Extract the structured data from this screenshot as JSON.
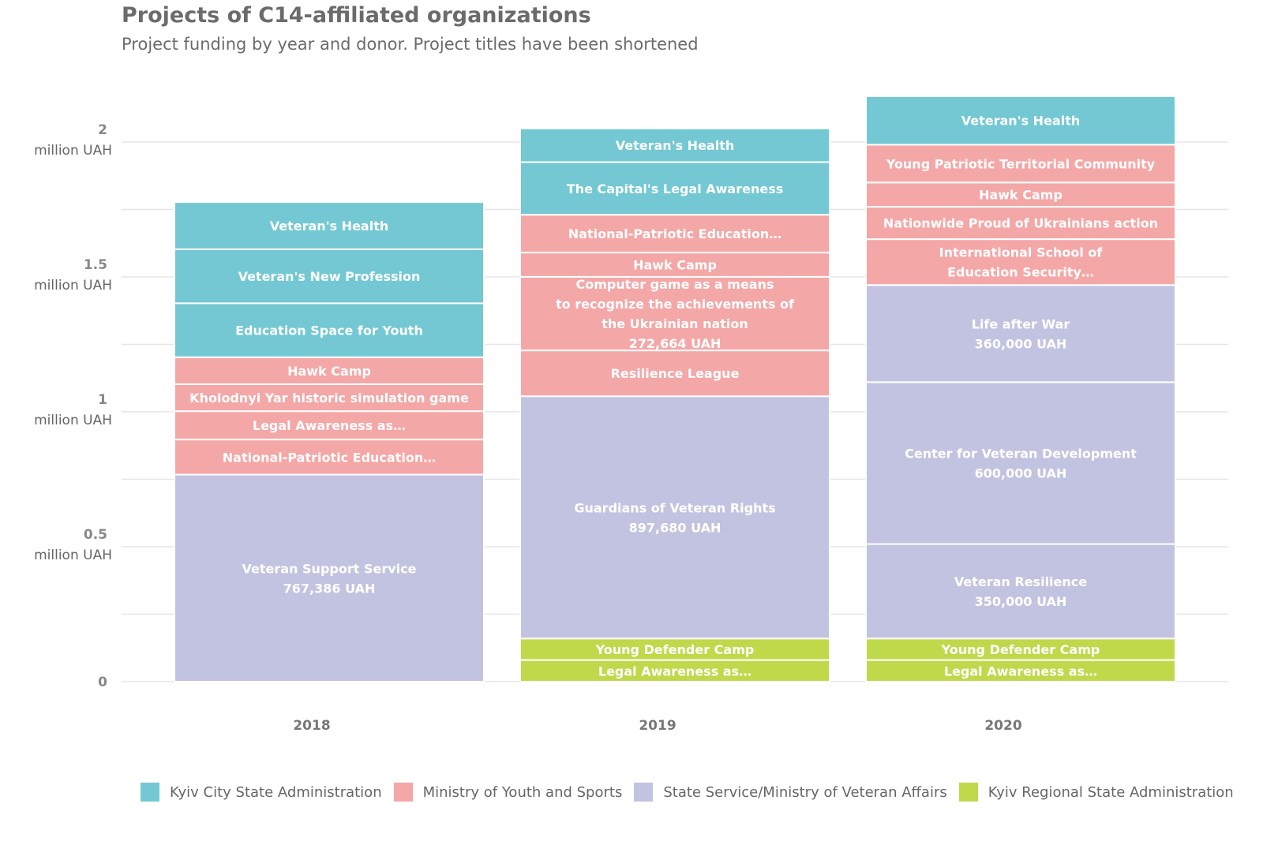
{
  "title": "Projects of C14-affiliated organizations",
  "subtitle": "Project funding by year and donor. Project titles have been shortened",
  "colors": {
    "kyiv_city": "#73c8d3",
    "ministry_youth": "#f4a7a7",
    "veteran_affairs": "#c2c3e0",
    "kyiv_regional": "#bfd94b"
  },
  "chart_data": {
    "type": "bar",
    "stacked": true,
    "categories": [
      "2018",
      "2019",
      "2020"
    ],
    "ylim": [
      0,
      2.2
    ],
    "y_unit_label": "million UAH",
    "y_ticks": [
      {
        "value": 0,
        "label": "0",
        "unit": ""
      },
      {
        "value": 0.5,
        "label": "0.5",
        "unit": "million UAH"
      },
      {
        "value": 1,
        "label": "1",
        "unit": "million UAH"
      },
      {
        "value": 1.5,
        "label": "1.5",
        "unit": "million UAH"
      },
      {
        "value": 2,
        "label": "2",
        "unit": "million UAH"
      }
    ],
    "grid": true,
    "legend_position": "bottom",
    "legend": [
      {
        "key": "kyiv_city",
        "name": "Kyiv City State Administration"
      },
      {
        "key": "ministry_youth",
        "name": "Ministry of Youth and Sports"
      },
      {
        "key": "veteran_affairs",
        "name": "State Service/Ministry of Veteran Affairs"
      },
      {
        "key": "kyiv_regional",
        "name": "Kyiv Regional State Administration"
      }
    ],
    "stacks": [
      {
        "year": "2018",
        "segments": [
          {
            "donor": "veteran_affairs",
            "value": 0.767386,
            "label": [
              "Veteran Support Service",
              "767,386 UAH"
            ]
          },
          {
            "donor": "ministry_youth",
            "value": 0.13,
            "label": [
              "National-Patriotic Education…"
            ]
          },
          {
            "donor": "ministry_youth",
            "value": 0.105,
            "label": [
              "Legal Awareness as…"
            ]
          },
          {
            "donor": "ministry_youth",
            "value": 0.1,
            "label": [
              "Kholodnyi Yar historic simulation game"
            ]
          },
          {
            "donor": "ministry_youth",
            "value": 0.1,
            "label": [
              "Hawk Camp"
            ]
          },
          {
            "donor": "kyiv_city",
            "value": 0.2,
            "label": [
              "Education Space for Youth"
            ]
          },
          {
            "donor": "kyiv_city",
            "value": 0.2,
            "label": [
              "Veteran's New Profession"
            ]
          },
          {
            "donor": "kyiv_city",
            "value": 0.175,
            "label": [
              "Veteran's Health"
            ]
          }
        ]
      },
      {
        "year": "2019",
        "segments": [
          {
            "donor": "kyiv_regional",
            "value": 0.08,
            "label": [
              "Legal Awareness as…"
            ]
          },
          {
            "donor": "kyiv_regional",
            "value": 0.08,
            "label": [
              "Young Defender Camp"
            ]
          },
          {
            "donor": "veteran_affairs",
            "value": 0.89768,
            "label": [
              "Guardians of Veteran Rights",
              "897,680 UAH"
            ]
          },
          {
            "donor": "ministry_youth",
            "value": 0.17,
            "label": [
              "Resilience League"
            ]
          },
          {
            "donor": "ministry_youth",
            "value": 0.272664,
            "label": [
              "Computer game as a means",
              "to recognize the achievements of",
              "the Ukrainian nation",
              "272,664 UAH"
            ]
          },
          {
            "donor": "ministry_youth",
            "value": 0.09,
            "label": [
              "Hawk Camp"
            ]
          },
          {
            "donor": "ministry_youth",
            "value": 0.14,
            "label": [
              "National-Patriotic Education…"
            ]
          },
          {
            "donor": "kyiv_city",
            "value": 0.195,
            "label": [
              "The Capital's Legal Awareness"
            ]
          },
          {
            "donor": "kyiv_city",
            "value": 0.125,
            "label": [
              "Veteran's Health"
            ]
          }
        ]
      },
      {
        "year": "2020",
        "segments": [
          {
            "donor": "kyiv_regional",
            "value": 0.08,
            "label": [
              "Legal Awareness as…"
            ]
          },
          {
            "donor": "kyiv_regional",
            "value": 0.08,
            "label": [
              "Young Defender Camp"
            ]
          },
          {
            "donor": "veteran_affairs",
            "value": 0.35,
            "label": [
              "Veteran Resilience",
              "350,000 UAH"
            ]
          },
          {
            "donor": "veteran_affairs",
            "value": 0.6,
            "label": [
              "Center for Veteran Development",
              "600,000 UAH"
            ]
          },
          {
            "donor": "veteran_affairs",
            "value": 0.36,
            "label": [
              "Life after War",
              "360,000 UAH"
            ]
          },
          {
            "donor": "ministry_youth",
            "value": 0.17,
            "label": [
              "International School of",
              "Education Security…"
            ]
          },
          {
            "donor": "ministry_youth",
            "value": 0.12,
            "label": [
              "Nationwide Proud of Ukrainians action"
            ]
          },
          {
            "donor": "ministry_youth",
            "value": 0.09,
            "label": [
              "Hawk Camp"
            ]
          },
          {
            "donor": "ministry_youth",
            "value": 0.14,
            "label": [
              "Young Patriotic Territorial Community"
            ]
          },
          {
            "donor": "kyiv_city",
            "value": 0.18,
            "label": [
              "Veteran's Health"
            ]
          }
        ]
      }
    ]
  }
}
